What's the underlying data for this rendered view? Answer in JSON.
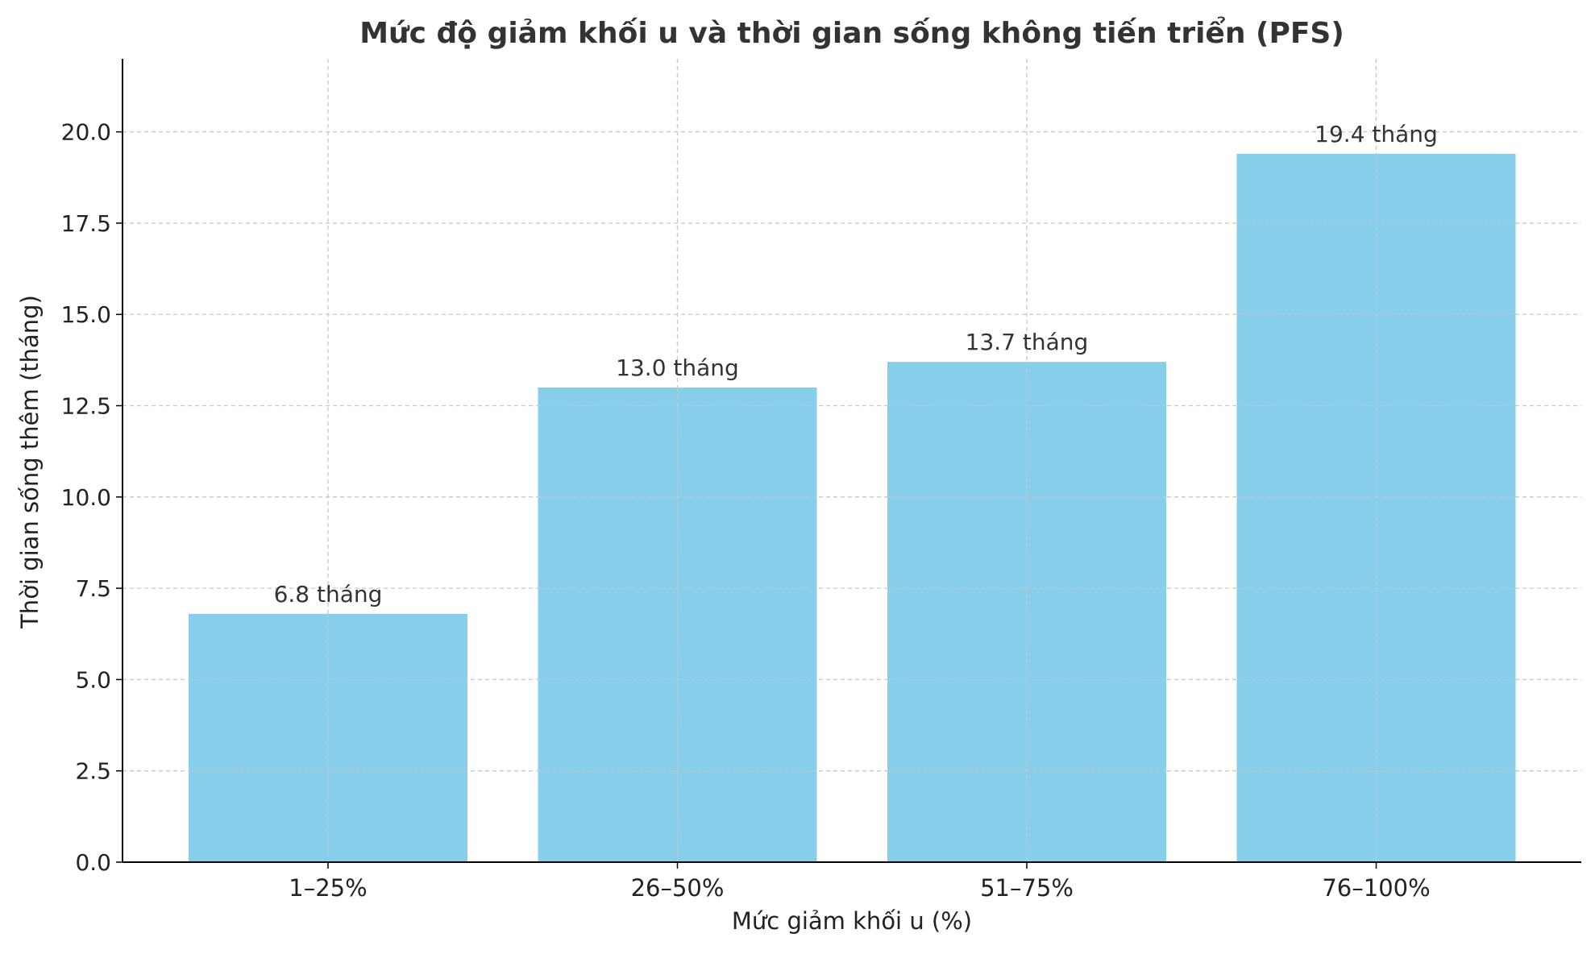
{
  "chart_data": {
    "type": "bar",
    "title": "Mức độ giảm khối u và thời gian sống không tiến triển (PFS)",
    "xlabel": "Mức giảm khối u (%)",
    "ylabel": "Thời gian sống thêm (tháng)",
    "categories": [
      "1–25%",
      "26–50%",
      "51–75%",
      "76–100%"
    ],
    "values": [
      6.8,
      13.0,
      13.7,
      19.4
    ],
    "data_labels": [
      "6.8 tháng",
      "13.0 tháng",
      "13.7 tháng",
      "19.4 tháng"
    ],
    "ylim": [
      0,
      22
    ],
    "yticks": [
      "0.0",
      "2.5",
      "5.0",
      "7.5",
      "10.0",
      "12.5",
      "15.0",
      "17.5",
      "20.0"
    ],
    "grid": true,
    "bar_color": "#87CEEB",
    "text_color": "#333333",
    "axis_color": "#000000",
    "grid_color": "#c8c8c8"
  }
}
